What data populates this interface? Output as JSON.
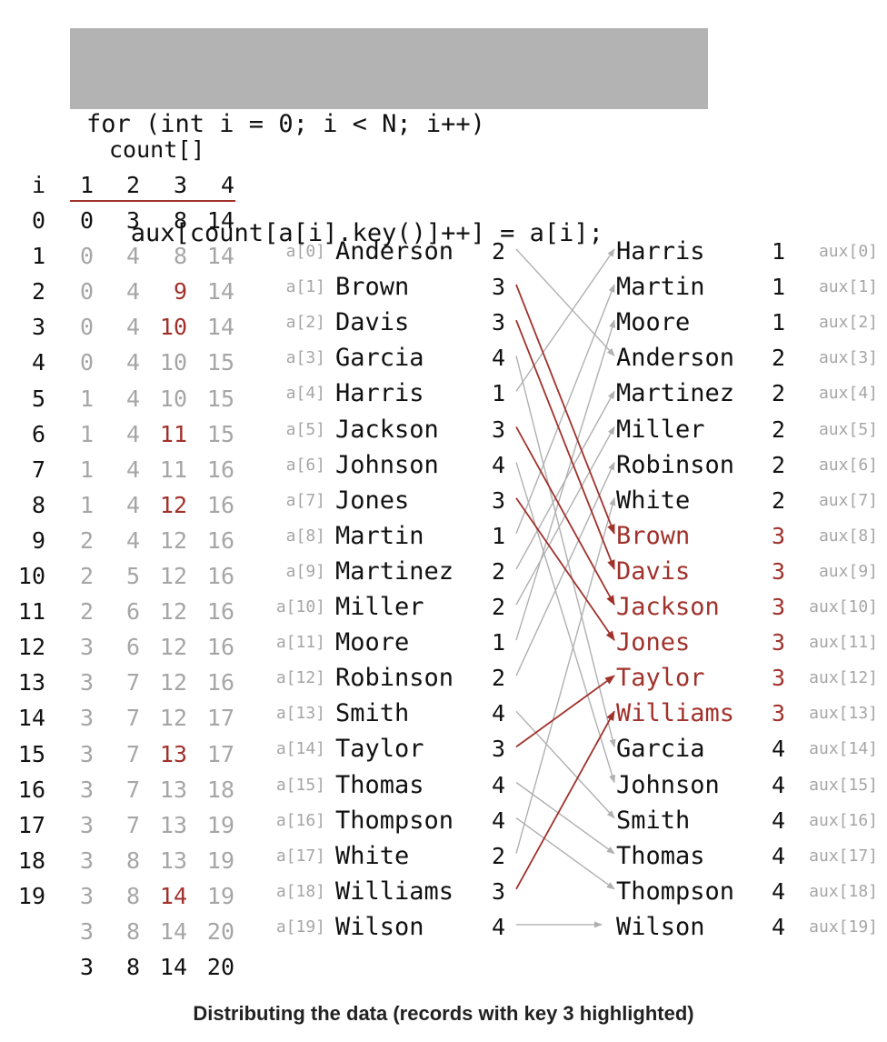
{
  "code": {
    "line1": "for (int i = 0; i < N; i++)",
    "line2": "   aux[count[a[i].key()]++] = a[i];"
  },
  "count_table": {
    "title": "count[]",
    "index_label": "i",
    "columns": [
      "1",
      "2",
      "3",
      "4"
    ],
    "rows": [
      {
        "i": "0",
        "values": [
          "0",
          "3",
          "8",
          "14"
        ]
      },
      {
        "i": "1",
        "values": [
          "0",
          "4",
          "8",
          "14"
        ]
      },
      {
        "i": "2",
        "values": [
          "0",
          "4",
          "9",
          "14"
        ]
      },
      {
        "i": "3",
        "values": [
          "0",
          "4",
          "10",
          "14"
        ]
      },
      {
        "i": "4",
        "values": [
          "0",
          "4",
          "10",
          "15"
        ]
      },
      {
        "i": "5",
        "values": [
          "1",
          "4",
          "10",
          "15"
        ]
      },
      {
        "i": "6",
        "values": [
          "1",
          "4",
          "11",
          "15"
        ]
      },
      {
        "i": "7",
        "values": [
          "1",
          "4",
          "11",
          "16"
        ]
      },
      {
        "i": "8",
        "values": [
          "1",
          "4",
          "12",
          "16"
        ]
      },
      {
        "i": "9",
        "values": [
          "2",
          "4",
          "12",
          "16"
        ]
      },
      {
        "i": "10",
        "values": [
          "2",
          "5",
          "12",
          "16"
        ]
      },
      {
        "i": "11",
        "values": [
          "2",
          "6",
          "12",
          "16"
        ]
      },
      {
        "i": "12",
        "values": [
          "3",
          "6",
          "12",
          "16"
        ]
      },
      {
        "i": "13",
        "values": [
          "3",
          "7",
          "12",
          "16"
        ]
      },
      {
        "i": "14",
        "values": [
          "3",
          "7",
          "12",
          "17"
        ]
      },
      {
        "i": "15",
        "values": [
          "3",
          "7",
          "13",
          "17"
        ]
      },
      {
        "i": "16",
        "values": [
          "3",
          "7",
          "13",
          "18"
        ]
      },
      {
        "i": "17",
        "values": [
          "3",
          "7",
          "13",
          "19"
        ]
      },
      {
        "i": "18",
        "values": [
          "3",
          "8",
          "13",
          "19"
        ]
      },
      {
        "i": "19",
        "values": [
          "3",
          "8",
          "14",
          "19"
        ]
      },
      {
        "i": "",
        "values": [
          "3",
          "8",
          "14",
          "20"
        ]
      },
      {
        "i": "",
        "values": [
          "3",
          "8",
          "14",
          "20"
        ]
      }
    ],
    "highlighted_rows": [
      2,
      3,
      6,
      8,
      15,
      19
    ]
  },
  "input": [
    {
      "label": "a[0]",
      "name": "Anderson",
      "key": "2"
    },
    {
      "label": "a[1]",
      "name": "Brown",
      "key": "3"
    },
    {
      "label": "a[2]",
      "name": "Davis",
      "key": "3"
    },
    {
      "label": "a[3]",
      "name": "Garcia",
      "key": "4"
    },
    {
      "label": "a[4]",
      "name": "Harris",
      "key": "1"
    },
    {
      "label": "a[5]",
      "name": "Jackson",
      "key": "3"
    },
    {
      "label": "a[6]",
      "name": "Johnson",
      "key": "4"
    },
    {
      "label": "a[7]",
      "name": "Jones",
      "key": "3"
    },
    {
      "label": "a[8]",
      "name": "Martin",
      "key": "1"
    },
    {
      "label": "a[9]",
      "name": "Martinez",
      "key": "2"
    },
    {
      "label": "a[10]",
      "name": "Miller",
      "key": "2"
    },
    {
      "label": "a[11]",
      "name": "Moore",
      "key": "1"
    },
    {
      "label": "a[12]",
      "name": "Robinson",
      "key": "2"
    },
    {
      "label": "a[13]",
      "name": "Smith",
      "key": "4"
    },
    {
      "label": "a[14]",
      "name": "Taylor",
      "key": "3"
    },
    {
      "label": "a[15]",
      "name": "Thomas",
      "key": "4"
    },
    {
      "label": "a[16]",
      "name": "Thompson",
      "key": "4"
    },
    {
      "label": "a[17]",
      "name": "White",
      "key": "2"
    },
    {
      "label": "a[18]",
      "name": "Williams",
      "key": "3"
    },
    {
      "label": "a[19]",
      "name": "Wilson",
      "key": "4"
    }
  ],
  "output": [
    {
      "label": "aux[0]",
      "name": "Harris",
      "key": "1"
    },
    {
      "label": "aux[1]",
      "name": "Martin",
      "key": "1"
    },
    {
      "label": "aux[2]",
      "name": "Moore",
      "key": "1"
    },
    {
      "label": "aux[3]",
      "name": "Anderson",
      "key": "2"
    },
    {
      "label": "aux[4]",
      "name": "Martinez",
      "key": "2"
    },
    {
      "label": "aux[5]",
      "name": "Miller",
      "key": "2"
    },
    {
      "label": "aux[6]",
      "name": "Robinson",
      "key": "2"
    },
    {
      "label": "aux[7]",
      "name": "White",
      "key": "2"
    },
    {
      "label": "aux[8]",
      "name": "Brown",
      "key": "3"
    },
    {
      "label": "aux[9]",
      "name": "Davis",
      "key": "3"
    },
    {
      "label": "aux[10]",
      "name": "Jackson",
      "key": "3"
    },
    {
      "label": "aux[11]",
      "name": "Jones",
      "key": "3"
    },
    {
      "label": "aux[12]",
      "name": "Taylor",
      "key": "3"
    },
    {
      "label": "aux[13]",
      "name": "Williams",
      "key": "3"
    },
    {
      "label": "aux[14]",
      "name": "Garcia",
      "key": "4"
    },
    {
      "label": "aux[15]",
      "name": "Johnson",
      "key": "4"
    },
    {
      "label": "aux[16]",
      "name": "Smith",
      "key": "4"
    },
    {
      "label": "aux[17]",
      "name": "Thomas",
      "key": "4"
    },
    {
      "label": "aux[18]",
      "name": "Thompson",
      "key": "4"
    },
    {
      "label": "aux[19]",
      "name": "Wilson",
      "key": "4"
    }
  ],
  "highlight_key": "3",
  "colors": {
    "highlight": "#a0322c",
    "muted": "#a6a6a6",
    "arrow_muted": "#b0b0b0",
    "code_bg": "#b3b3b3"
  },
  "caption": "Distributing the data (records with key 3 highlighted)"
}
